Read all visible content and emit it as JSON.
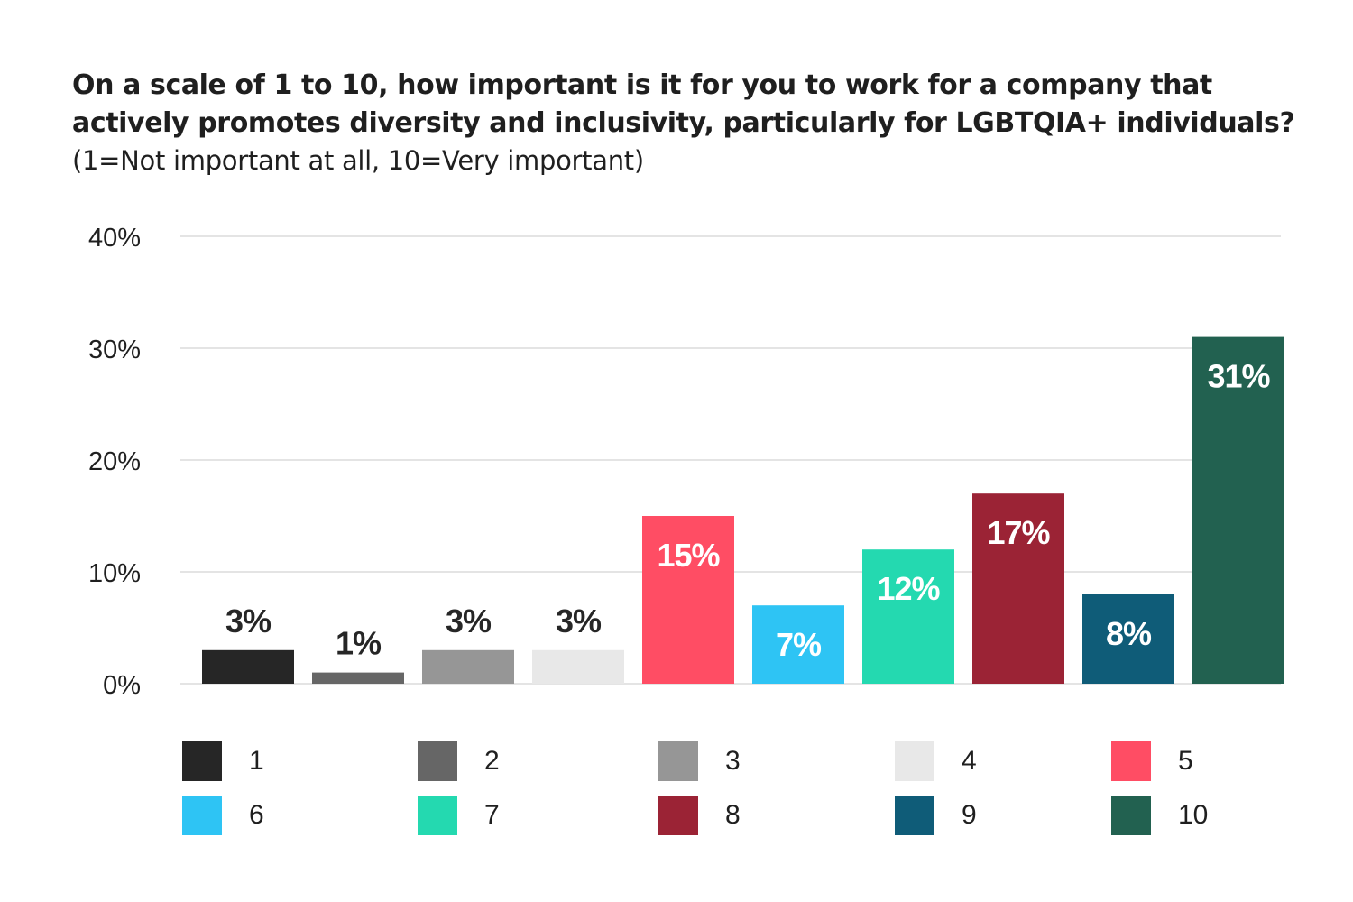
{
  "chart_data": {
    "type": "bar",
    "title": "On a scale of 1 to 10, how important is it for you to work for a company that actively promotes diversity and inclusivity, particularly for LGBTQIA+ individuals?",
    "subtitle": "(1=Not important at all, 10=Very important)",
    "categories": [
      "1",
      "2",
      "3",
      "4",
      "5",
      "6",
      "7",
      "8",
      "9",
      "10"
    ],
    "values": [
      3,
      1,
      3,
      3,
      15,
      7,
      12,
      17,
      8,
      31
    ],
    "data_labels": [
      "3%",
      "1%",
      "3%",
      "3%",
      "15%",
      "7%",
      "12%",
      "17%",
      "8%",
      "31%"
    ],
    "colors": [
      "#262626",
      "#666666",
      "#969696",
      "#e8e8e8",
      "#ff4d64",
      "#2ec4f4",
      "#24d9b0",
      "#9b2335",
      "#0f5c78",
      "#226150"
    ],
    "label_colors": [
      "#262626",
      "#262626",
      "#262626",
      "#262626",
      "#ffffff",
      "#ffffff",
      "#ffffff",
      "#ffffff",
      "#ffffff",
      "#ffffff"
    ],
    "yticks": [
      0,
      10,
      20,
      30,
      40
    ],
    "ytick_labels": [
      "0%",
      "10%",
      "20%",
      "30%",
      "40%"
    ],
    "ylim": [
      0,
      40
    ],
    "xlabel": "",
    "ylabel": "",
    "grid": true,
    "legend_position": "bottom",
    "legend": [
      "1",
      "2",
      "3",
      "4",
      "5",
      "6",
      "7",
      "8",
      "9",
      "10"
    ]
  }
}
